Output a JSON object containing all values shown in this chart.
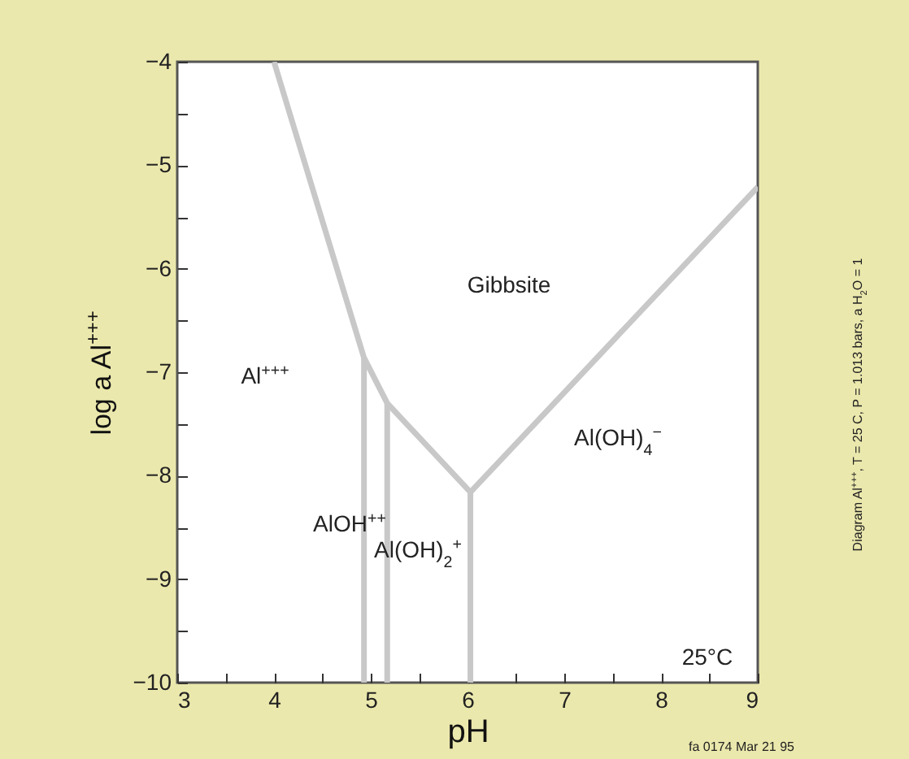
{
  "chart_data": {
    "type": "line",
    "xlabel": "pH",
    "ylabel": "log a Al$^{+++}$",
    "xlim": [
      3,
      9
    ],
    "ylim": [
      -10,
      -4
    ],
    "xticks": [
      3,
      {
        "value": 3.5,
        "label": null
      },
      4,
      {
        "value": 4.5,
        "label": null
      },
      5,
      {
        "value": 5.5,
        "label": null
      },
      6,
      {
        "value": 6.5,
        "label": null
      },
      7,
      {
        "value": 7.5,
        "label": null
      },
      8,
      {
        "value": 8.5,
        "label": null
      },
      9
    ],
    "yticks": [
      -10,
      {
        "value": -9.5,
        "label": null
      },
      -9,
      {
        "value": -8.5,
        "label": null
      },
      -8,
      {
        "value": -7.5,
        "label": null
      },
      -7,
      {
        "value": -6.5,
        "label": null
      },
      -6,
      {
        "value": -5.5,
        "label": null
      },
      -5,
      {
        "value": -4.5,
        "label": null
      },
      -4
    ],
    "series": [
      {
        "color": "#c8c8c8",
        "x": [
          4,
          4.93,
          5.17,
          6.03,
          9
        ],
        "values": [
          -4,
          -6.86,
          -7.3,
          -8.16,
          -5.21
        ]
      },
      {
        "color": "#c8c8c8",
        "x": [
          4.93,
          4.93
        ],
        "values": [
          -6.86,
          -10
        ]
      },
      {
        "color": "#c8c8c8",
        "x": [
          5.17,
          5.17
        ],
        "values": [
          -7.3,
          -10
        ]
      },
      {
        "color": "#c8c8c8",
        "x": [
          6.03,
          6.03
        ],
        "values": [
          -8.16,
          -10
        ]
      }
    ],
    "annotations": [
      "Gibbsite",
      "Al$^{+++}$",
      "AlOH$^{++}$",
      "Al(OH)$_{2}$$^{+}$",
      "Al(OH)$_{4}$$^{−}$",
      "25°C",
      "Diagram Al$^{+++}$, T = 25 C, P = 1.013 bars, a H$_{2}$O = 1",
      "fa 0174 Mar 21 95"
    ],
    "grid": false,
    "legend": false,
    "marker": "none",
    "line_style": "solid"
  }
}
